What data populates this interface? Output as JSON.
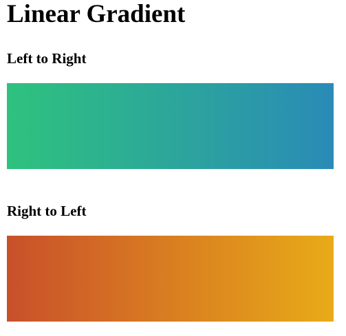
{
  "page": {
    "title": "Linear Gradient"
  },
  "sections": [
    {
      "label": "Left to Right",
      "direction": "to right",
      "colors": [
        "#2ec27e",
        "#2a8bb7"
      ]
    },
    {
      "label": "Right to Left",
      "direction": "to left",
      "colors": [
        "#e8ab18",
        "#c9502a"
      ]
    }
  ]
}
